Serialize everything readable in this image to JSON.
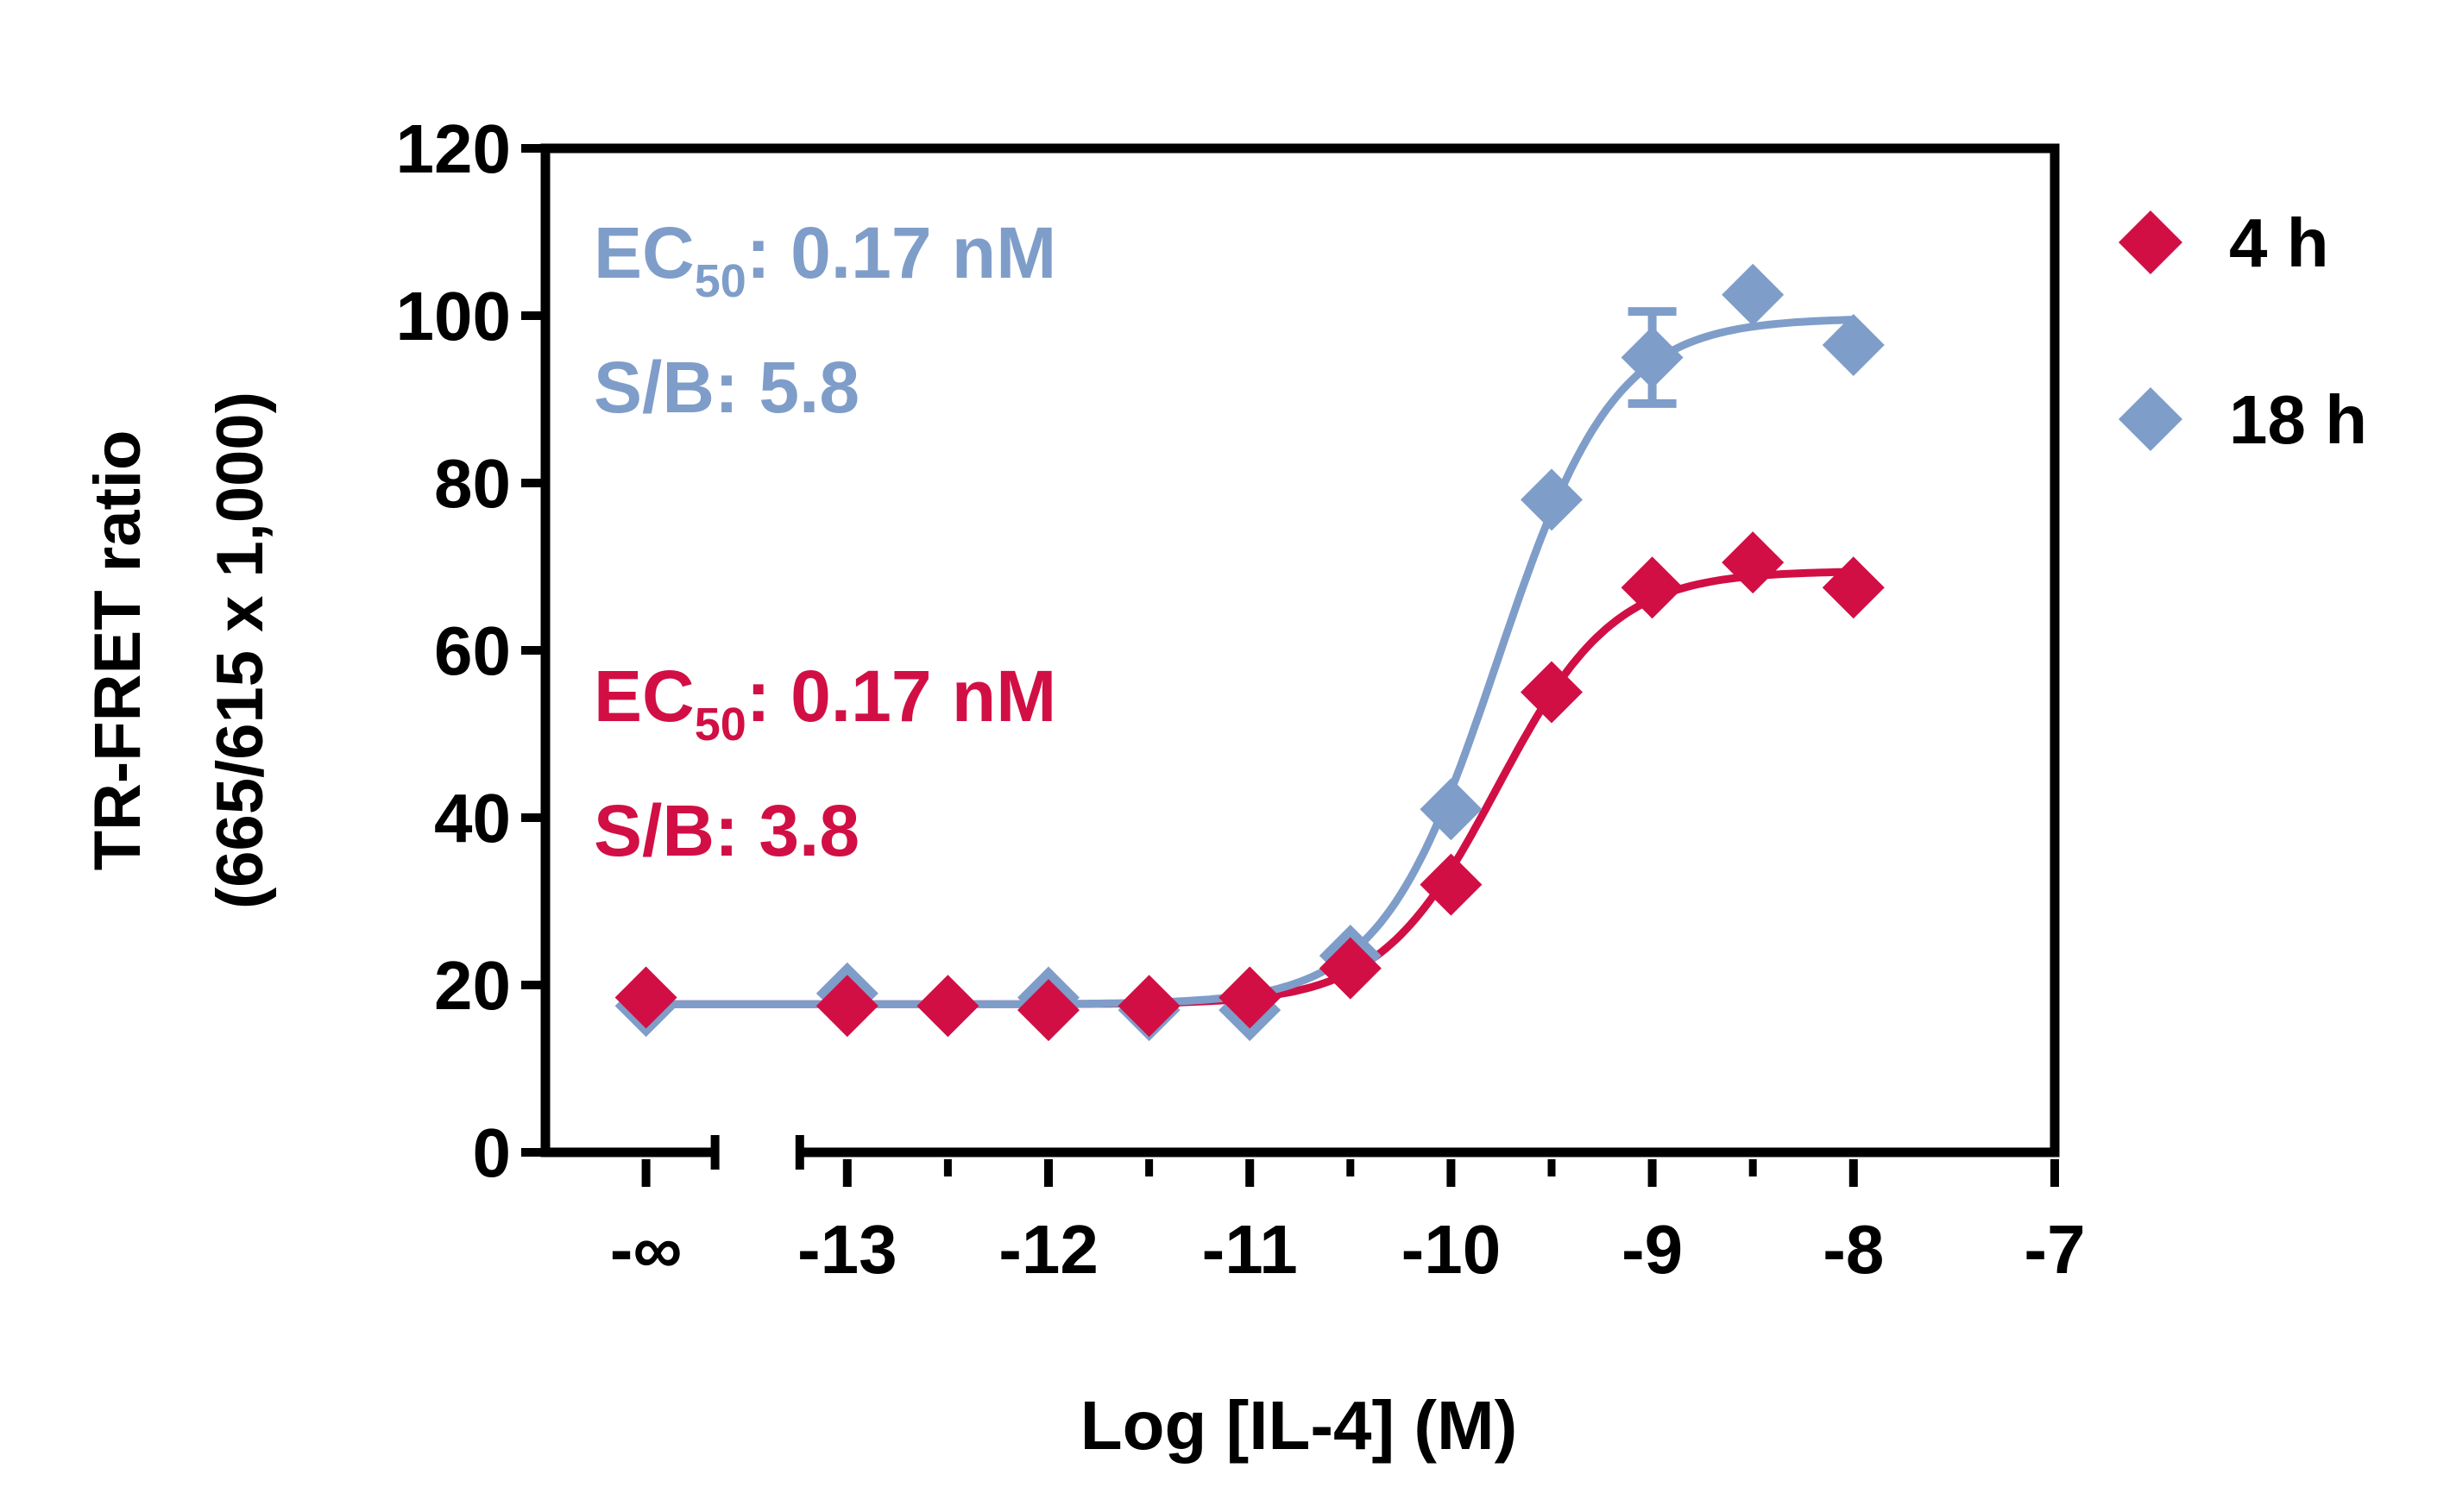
{
  "chart_data": {
    "type": "scatter",
    "xlabel": "Log [IL-4] (M)",
    "ylabel_line1": "TR-FRET ratio",
    "ylabel_line2": "(665/615 x 1,000)",
    "xlim": [
      -14.5,
      -7
    ],
    "ylim": [
      0,
      120
    ],
    "x_ticks": [
      {
        "value": -14,
        "label": "-∞"
      },
      {
        "value": -13,
        "label": "-13"
      },
      {
        "value": -12,
        "label": "-12"
      },
      {
        "value": -11,
        "label": "-11"
      },
      {
        "value": -10,
        "label": "-10"
      },
      {
        "value": -9,
        "label": "-9"
      },
      {
        "value": -8,
        "label": "-8"
      },
      {
        "value": -7,
        "label": "-7"
      }
    ],
    "x_minor_ticks": [
      -12.5,
      -11.5,
      -10.5,
      -9.5,
      -8.5
    ],
    "y_ticks": [
      0,
      20,
      40,
      60,
      80,
      100,
      120
    ],
    "axis_break": {
      "between": [
        -14,
        -13
      ]
    },
    "legend_position": "right",
    "series": [
      {
        "name": "4 h",
        "color": "#d10f45",
        "marker": "diamond",
        "x": [
          -14,
          -13,
          -12.5,
          -12,
          -11.5,
          -11,
          -10.5,
          -10,
          -9.5,
          -9,
          -8.5,
          -8
        ],
        "y": [
          18.5,
          17.5,
          17.5,
          17.0,
          17.5,
          18.5,
          22.0,
          32.0,
          55.0,
          67.5,
          70.5,
          67.5
        ],
        "fit": {
          "bottom": 17.7,
          "top": 69.5,
          "log_ec50": -9.77,
          "hill": 1.5
        },
        "annotation": {
          "label": "EC",
          "sub": "50",
          "text": ": 0.17 nM",
          "sb": "S/B: 3.8"
        }
      },
      {
        "name": "18 h",
        "color": "#7f9dc9",
        "marker": "diamond",
        "x": [
          -14,
          -13,
          -12.5,
          -12,
          -11.5,
          -11,
          -10.5,
          -10,
          -9.5,
          -9,
          -8.5,
          -8
        ],
        "y": [
          17.5,
          19.0,
          17.5,
          18.5,
          17.0,
          17.0,
          23.5,
          41.0,
          78.0,
          95.0,
          102.5,
          96.5
        ],
        "error": [
          {
            "x": -9,
            "y": 95.0,
            "err": 5.5
          }
        ],
        "fit": {
          "bottom": 17.7,
          "top": 99.7,
          "log_ec50": -9.77,
          "hill": 1.5
        },
        "annotation": {
          "label": "EC",
          "sub": "50",
          "text": ": 0.17 nM",
          "sb": "S/B: 5.8"
        }
      }
    ]
  }
}
